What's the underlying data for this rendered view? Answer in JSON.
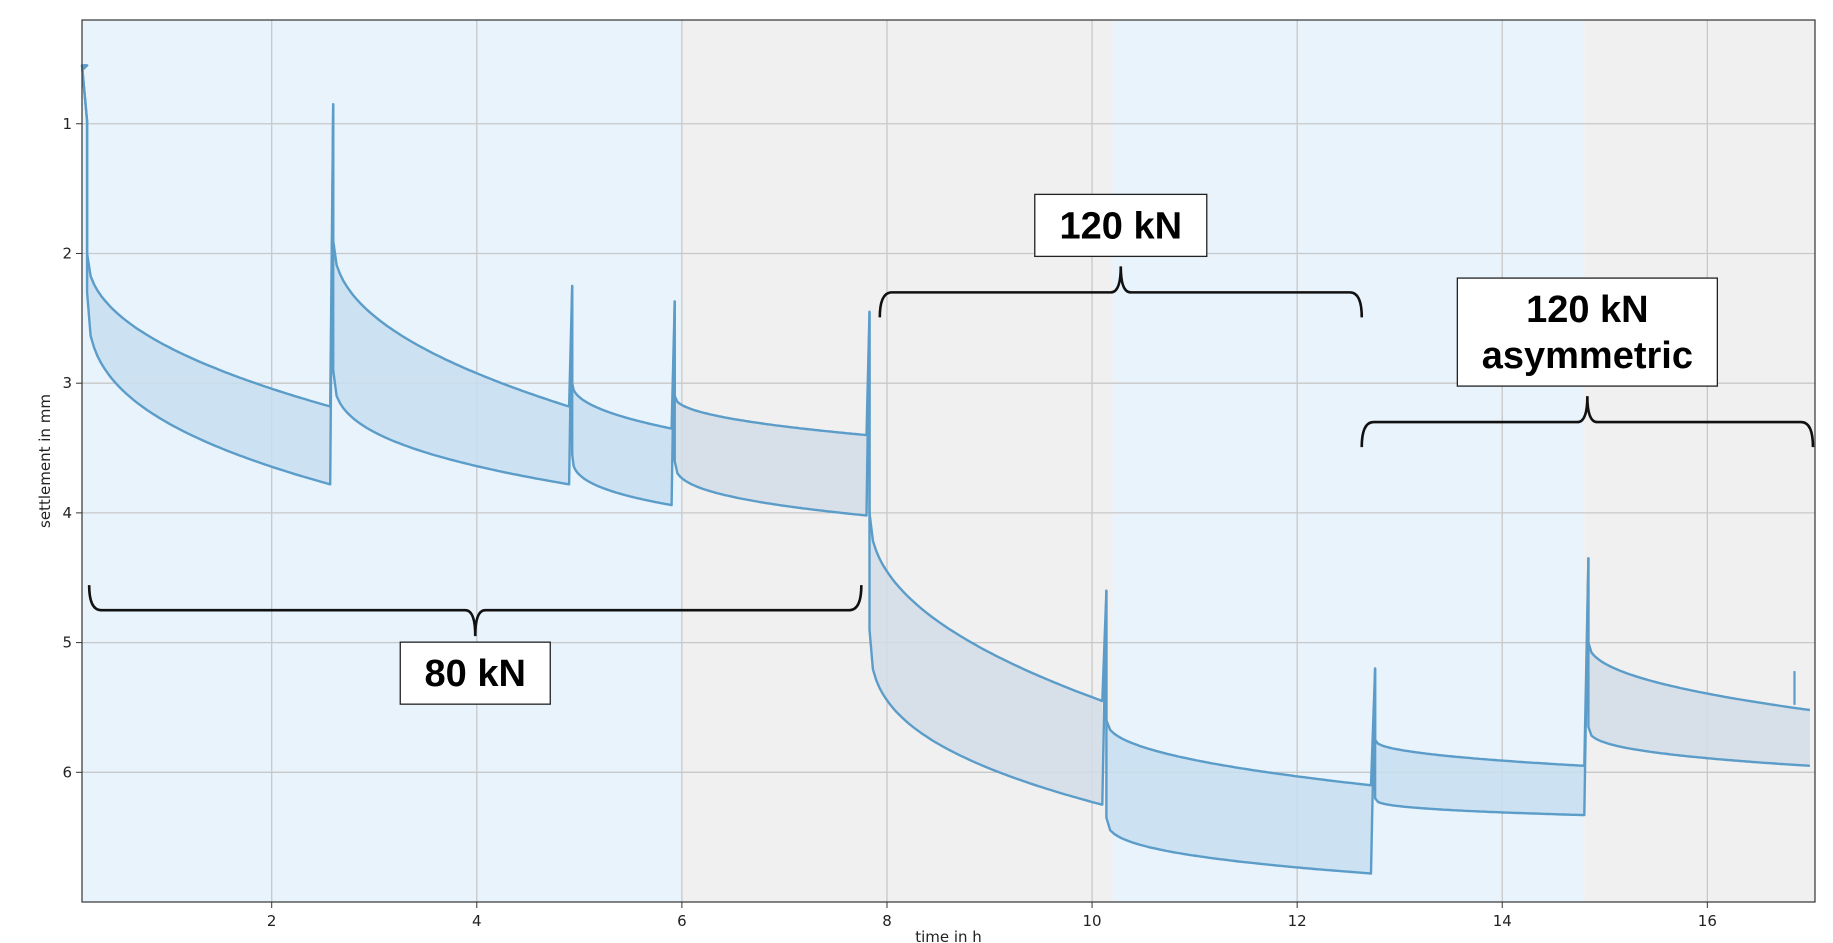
{
  "chart_data": {
    "type": "area",
    "title": "",
    "xlabel": "time in h",
    "ylabel": "settlement in mm",
    "xlim": [
      0.15,
      17.05
    ],
    "ylim": [
      7.0,
      0.2
    ],
    "y_inverted": true,
    "grid": true,
    "xticks": [
      2,
      4,
      6,
      8,
      10,
      12,
      14,
      16
    ],
    "yticks": [
      1,
      2,
      3,
      4,
      5,
      6
    ],
    "colors": {
      "line": "#5b9cc9",
      "fill_on_blue": "#c7def0",
      "fill_on_grey": "#d2dde6",
      "band_blue": "#e8f3fc",
      "band_grey": "#f0f0f0",
      "grid": "#c8c8c8"
    },
    "background_bands": [
      {
        "x": [
          0.15,
          6.0
        ],
        "color": "blue"
      },
      {
        "x": [
          6.0,
          10.2
        ],
        "color": "grey"
      },
      {
        "x": [
          10.2,
          14.8
        ],
        "color": "blue"
      },
      {
        "x": [
          14.8,
          17.05
        ],
        "color": "grey"
      }
    ],
    "series": [
      {
        "envelope": "upper",
        "segments": [
          {
            "t_start": 0.2,
            "t_end": 2.57,
            "peak": 0.98,
            "start_value": 2.0,
            "end_value": 3.18
          },
          {
            "t_start": 2.6,
            "t_end": 4.9,
            "peak": 0.85,
            "start_value": 1.9,
            "end_value": 3.18
          },
          {
            "t_start": 4.93,
            "t_end": 5.9,
            "peak": 2.25,
            "start_value": 3.0,
            "end_value": 3.35
          },
          {
            "t_start": 5.93,
            "t_end": 7.8,
            "peak": 2.37,
            "start_value": 3.1,
            "end_value": 3.4
          },
          {
            "t_start": 7.83,
            "t_end": 10.1,
            "peak": 2.45,
            "start_value": 4.0,
            "end_value": 5.45
          },
          {
            "t_start": 10.14,
            "t_end": 12.72,
            "peak": 4.6,
            "start_value": 5.6,
            "end_value": 6.1
          },
          {
            "t_start": 12.76,
            "t_end": 14.8,
            "peak": 5.2,
            "start_value": 5.75,
            "end_value": 5.95
          },
          {
            "t_start": 14.84,
            "t_end": 17.0,
            "peak": 4.35,
            "start_value": 5.0,
            "end_value": 5.52
          }
        ]
      },
      {
        "envelope": "lower",
        "segments": [
          {
            "t_start": 0.2,
            "t_end": 2.57,
            "start_value": 2.3,
            "end_value": 3.78
          },
          {
            "t_start": 2.6,
            "t_end": 4.9,
            "start_value": 2.9,
            "end_value": 3.78
          },
          {
            "t_start": 4.93,
            "t_end": 5.9,
            "start_value": 3.55,
            "end_value": 3.94
          },
          {
            "t_start": 5.93,
            "t_end": 7.8,
            "start_value": 3.6,
            "end_value": 4.02
          },
          {
            "t_start": 7.83,
            "t_end": 10.1,
            "start_value": 4.9,
            "end_value": 6.25
          },
          {
            "t_start": 10.14,
            "t_end": 12.72,
            "start_value": 6.35,
            "end_value": 6.78
          },
          {
            "t_start": 12.76,
            "t_end": 14.8,
            "start_value": 6.2,
            "end_value": 6.33
          },
          {
            "t_start": 14.84,
            "t_end": 17.0,
            "start_value": 5.65,
            "end_value": 5.95
          }
        ]
      }
    ],
    "annotations": [
      {
        "lines": [
          "80 kN"
        ],
        "bracket_x": [
          0.22,
          7.75
        ],
        "bracket_y": 4.75,
        "label_position": "below"
      },
      {
        "lines": [
          "120 kN"
        ],
        "bracket_x": [
          7.93,
          12.63
        ],
        "bracket_y": 2.3,
        "label_position": "above"
      },
      {
        "lines": [
          "120 kN",
          "asymmetric"
        ],
        "bracket_x": [
          12.63,
          17.03
        ],
        "bracket_y": 3.3,
        "label_position": "above"
      }
    ]
  }
}
